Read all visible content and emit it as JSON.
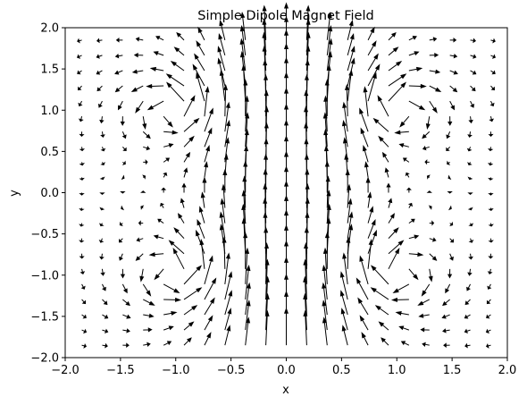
{
  "chart_data": {
    "type": "quiver",
    "title": "Simple Dipole Magnet Field",
    "xlabel": "x",
    "ylabel": "y",
    "xlim": [
      -2.0,
      2.0
    ],
    "ylim": [
      -2.0,
      2.0
    ],
    "grid": false,
    "legend": false,
    "arrow_color": "#000000",
    "grid_points": {
      "x_start": -1.85,
      "x_end": 1.85,
      "y_start": -1.85,
      "y_end": 1.85,
      "count": 21
    },
    "field_model": "sum of four current-loop sources at (±1, ±1) plus uniform vertical component",
    "xticks": [
      {
        "value": -2.0,
        "label": "−2.0"
      },
      {
        "value": -1.5,
        "label": "−1.5"
      },
      {
        "value": -1.0,
        "label": "−1.0"
      },
      {
        "value": -0.5,
        "label": "−0.5"
      },
      {
        "value": 0.0,
        "label": "0.0"
      },
      {
        "value": 0.5,
        "label": "0.5"
      },
      {
        "value": 1.0,
        "label": "1.0"
      },
      {
        "value": 1.5,
        "label": "1.5"
      },
      {
        "value": 2.0,
        "label": "2.0"
      }
    ],
    "yticks": [
      {
        "value": 2.0,
        "label": "2.0"
      },
      {
        "value": 1.5,
        "label": "1.5"
      },
      {
        "value": 1.0,
        "label": "1.0"
      },
      {
        "value": 0.5,
        "label": "0.5"
      },
      {
        "value": 0.0,
        "label": "0.0"
      },
      {
        "value": -0.5,
        "label": "−0.5"
      },
      {
        "value": -1.0,
        "label": "−1.0"
      },
      {
        "value": -1.5,
        "label": "−1.5"
      },
      {
        "value": -2.0,
        "label": "−2.0"
      }
    ]
  }
}
